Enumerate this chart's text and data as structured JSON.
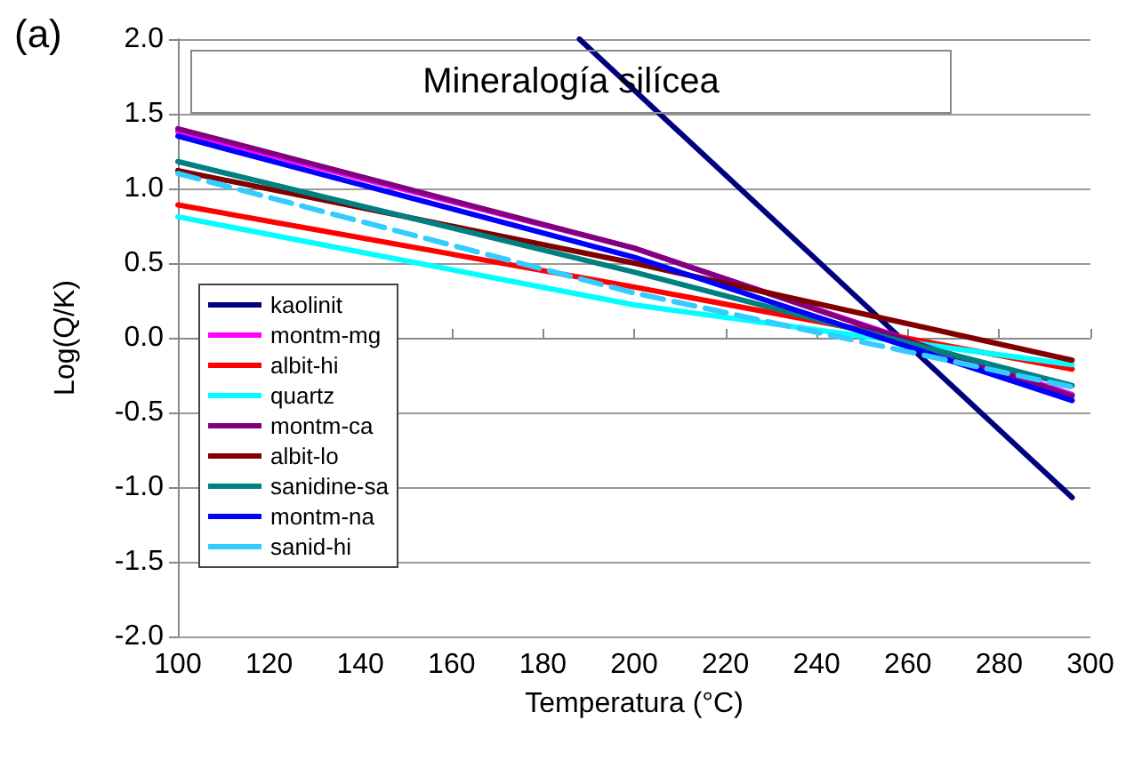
{
  "chart_data": {
    "type": "line",
    "title": "Mineralogía silícea",
    "xlabel": "Temperatura (°C)",
    "ylabel": "Log(Q/K)",
    "annotations": [
      "(a)"
    ],
    "xlim": [
      100,
      300
    ],
    "xticks": [
      100,
      120,
      140,
      160,
      180,
      200,
      220,
      240,
      260,
      280,
      300
    ],
    "ylim": [
      -2,
      2
    ],
    "yticks": [
      {
        "value": -2,
        "label": "-2.0"
      },
      {
        "value": -1.5,
        "label": "-1.5"
      },
      {
        "value": -1,
        "label": "-1.0"
      },
      {
        "value": -0.5,
        "label": "-0.5"
      },
      {
        "value": 0,
        "label": "0.0"
      },
      {
        "value": 0.5,
        "label": "0.5"
      },
      {
        "value": 1,
        "label": "1.0"
      },
      {
        "value": 1.5,
        "label": "1.5"
      },
      {
        "value": 2,
        "label": "2.0"
      }
    ],
    "grid": "y",
    "legend": "left",
    "marker": "none",
    "line_style": "solid",
    "series": [
      {
        "name": "kaolinit",
        "color": "#000080",
        "x": [
          188,
          296
        ],
        "values": [
          2.0,
          -1.07
        ]
      },
      {
        "name": "montm-mg",
        "color": "#ff00ff",
        "x": [
          100,
          200,
          296
        ],
        "values": [
          1.38,
          0.6,
          -0.38
        ]
      },
      {
        "name": "albit-hi",
        "color": "#ff0000",
        "x": [
          100,
          200,
          296
        ],
        "values": [
          0.89,
          0.34,
          -0.21
        ]
      },
      {
        "name": "quartz",
        "color": "#00ffff",
        "x": [
          100,
          200,
          296
        ],
        "values": [
          0.81,
          0.22,
          -0.18
        ]
      },
      {
        "name": "montm-ca",
        "color": "#800080",
        "x": [
          100,
          200,
          296
        ],
        "values": [
          1.4,
          0.6,
          -0.39
        ]
      },
      {
        "name": "albit-lo",
        "color": "#800000",
        "x": [
          100,
          200,
          296
        ],
        "values": [
          1.12,
          0.5,
          -0.15
        ]
      },
      {
        "name": "sanidine-sa",
        "color": "#008080",
        "x": [
          100,
          200,
          296
        ],
        "values": [
          1.18,
          0.44,
          -0.32
        ]
      },
      {
        "name": "montm-na",
        "color": "#0000ff",
        "x": [
          100,
          200,
          296
        ],
        "values": [
          1.35,
          0.54,
          -0.42
        ]
      },
      {
        "name": "sanid-hi",
        "color": "#33ccff",
        "x": [
          100,
          200,
          296
        ],
        "values": [
          1.1,
          0.3,
          -0.33
        ],
        "line_style": "dashed"
      }
    ]
  }
}
